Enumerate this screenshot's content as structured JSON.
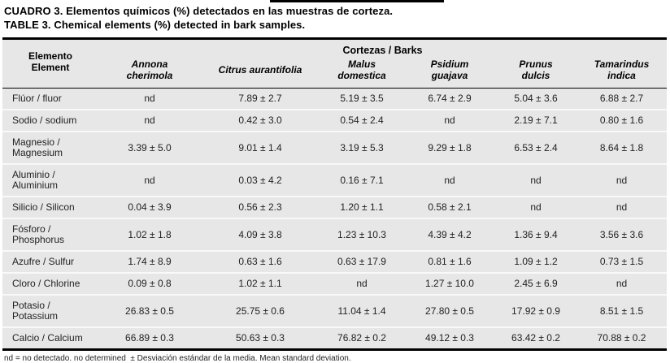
{
  "caption": {
    "line1_es": "CUADRO 3. Elementos químicos (%) detectados en las muestras de corteza.",
    "line2_en": "TABLE 3. Chemical elements (%) detected in bark samples."
  },
  "table": {
    "group_header": "Cortezas / Barks",
    "element_header": {
      "line1": "Elemento",
      "line2": "Element"
    },
    "species_columns": [
      {
        "lines": [
          "Annona",
          "cherimola"
        ]
      },
      {
        "lines": [
          "Citrus aurantifolia"
        ]
      },
      {
        "lines": [
          "Malus",
          "domestica"
        ]
      },
      {
        "lines": [
          "Psidium",
          "guajava"
        ]
      },
      {
        "lines": [
          "Prunus",
          "dulcis"
        ]
      },
      {
        "lines": [
          "Tamarindus",
          "indica"
        ]
      }
    ],
    "rows": [
      {
        "element": "Flúor / fluor",
        "values": [
          "nd",
          "7.89 ± 2.7",
          "5.19 ± 3.5",
          "6.74 ± 2.9",
          "5.04 ± 3.6",
          "6.88 ± 2.7"
        ]
      },
      {
        "element": "Sodio / sodium",
        "values": [
          "nd",
          "0.42 ± 3.0",
          "0.54 ± 2.4",
          "nd",
          "2.19 ± 7.1",
          "0.80 ± 1.6"
        ]
      },
      {
        "element": "Magnesio / Magnesium",
        "values": [
          "3.39 ± 5.0",
          "9.01 ± 1.4",
          "3.19 ± 5.3",
          "9.29 ± 1.8",
          "6.53 ± 2.4",
          "8.64 ± 1.8"
        ]
      },
      {
        "element": "Aluminio / Aluminium",
        "values": [
          "nd",
          "0.03 ± 4.2",
          "0.16 ± 7.1",
          "nd",
          "nd",
          "nd"
        ]
      },
      {
        "element": "Silicio / Silicon",
        "values": [
          "0.04 ± 3.9",
          "0.56 ± 2.3",
          "1.20 ± 1.1",
          "0.58 ± 2.1",
          "nd",
          "nd"
        ]
      },
      {
        "element": "Fósforo / Phosphorus",
        "values": [
          "1.02 ± 1.8",
          "4.09 ± 3.8",
          "1.23 ± 10.3",
          "4.39 ± 4.2",
          "1.36 ± 9.4",
          "3.56 ± 3.6"
        ]
      },
      {
        "element": "Azufre / Sulfur",
        "values": [
          "1.74 ± 8.9",
          "0.63 ± 1.6",
          "0.63 ± 17.9",
          "0.81 ± 1.6",
          "1.09 ± 1.2",
          "0.73 ± 1.5"
        ]
      },
      {
        "element": "Cloro / Chlorine",
        "values": [
          "0.09 ± 0.8",
          "1.02 ± 1.1",
          "nd",
          "1.27 ± 10.0",
          "2.45 ± 6.9",
          "nd"
        ]
      },
      {
        "element": "Potasio / Potassium",
        "values": [
          "26.83 ± 0.5",
          "25.75 ± 0.6",
          "11.04 ± 1.4",
          "27.80 ± 0.5",
          "17.92 ± 0.9",
          "8.51 ± 1.5"
        ]
      },
      {
        "element": "Calcio / Calcium",
        "values": [
          "66.89 ± 0.3",
          "50.63 ± 0.3",
          "76.82 ± 0.2",
          "49.12 ± 0.3",
          "63.42 ± 0.2",
          "70.88 ± 0.2"
        ]
      }
    ]
  },
  "footnote": "nd = no detectado. no determined  ± Desviación estándar de la media. Mean standard deviation.",
  "colors": {
    "table_background": "#e7e7e7",
    "rule": "#000000",
    "row_separator": "#f9f9f9"
  }
}
